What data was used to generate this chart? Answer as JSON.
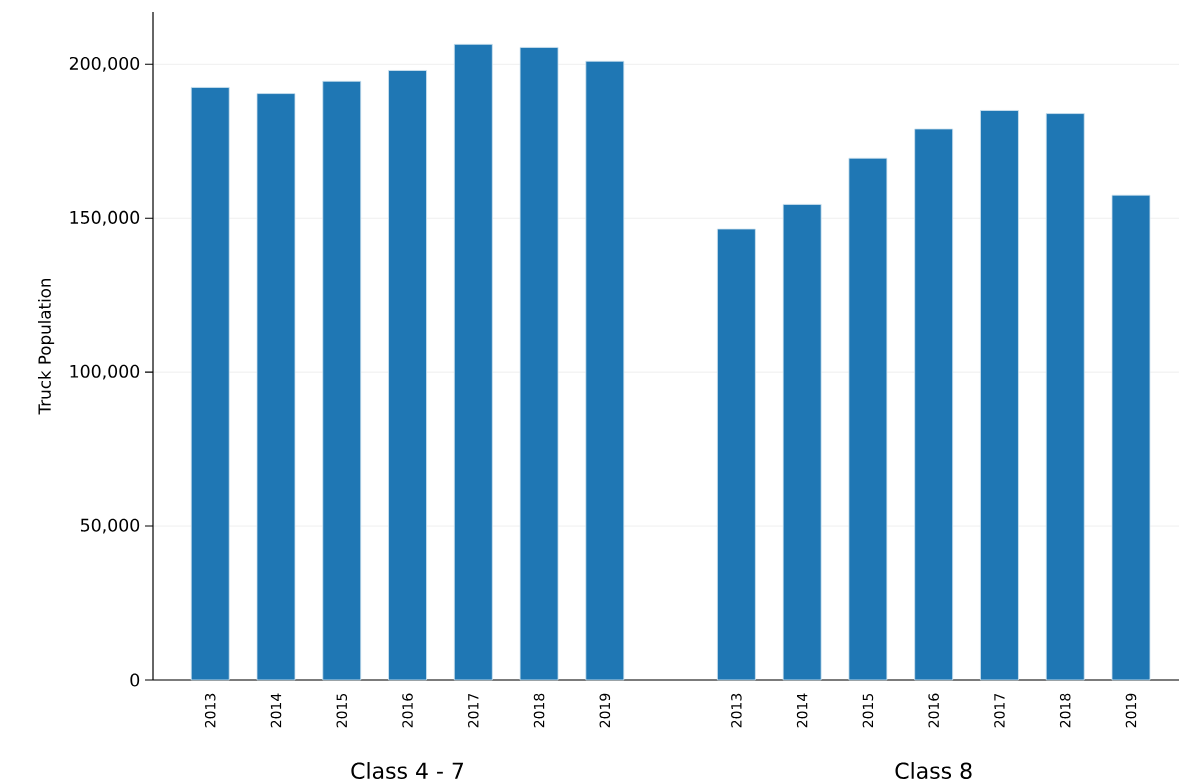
{
  "chart_data": {
    "type": "bar",
    "ylabel": "Truck Population",
    "categories": [
      "2013",
      "2014",
      "2015",
      "2016",
      "2017",
      "2018",
      "2019",
      null,
      "2013",
      "2014",
      "2015",
      "2016",
      "2017",
      "2018",
      "2019"
    ],
    "values": [
      192500,
      190500,
      194500,
      198000,
      206500,
      205500,
      201000,
      null,
      146500,
      154500,
      169500,
      179000,
      185000,
      184000,
      157500
    ],
    "color": "#1f77b4",
    "ylim": [
      0,
      217000
    ],
    "yticks": [
      0,
      {
        "value": 50000,
        "label": "50,000"
      },
      {
        "value": 100000,
        "label": "100,000"
      },
      {
        "value": 150000,
        "label": "150,000"
      },
      {
        "value": 200000,
        "label": "200,000"
      }
    ],
    "grid": "y",
    "annotations": [
      "Class 4 - 7",
      "Class 8"
    ]
  }
}
